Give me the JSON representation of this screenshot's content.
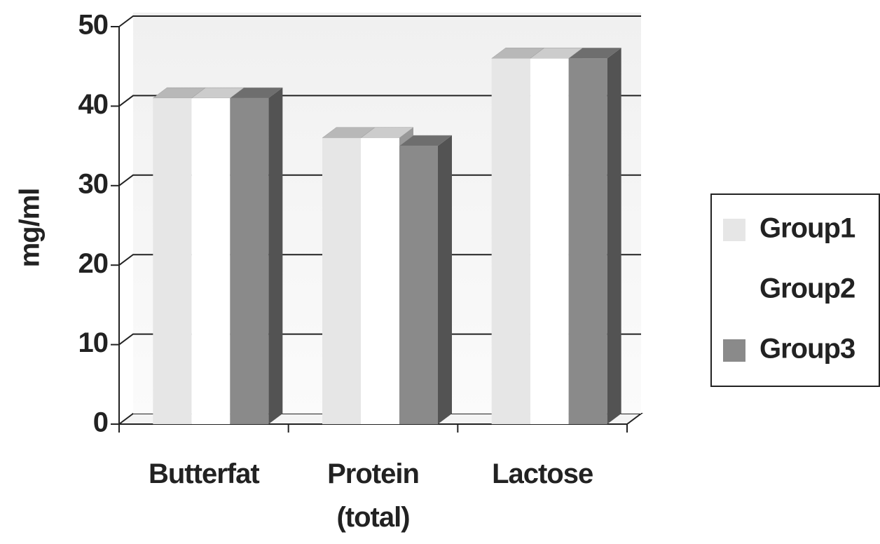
{
  "chart_data": {
    "type": "bar3d",
    "categories": [
      "Butterfat",
      "Protein (total)",
      "Lactose"
    ],
    "series": [
      {
        "name": "Group1",
        "color": "#e6e6e6",
        "values": [
          41,
          36,
          46
        ]
      },
      {
        "name": "Group2",
        "color": "#ffffff",
        "values": [
          41,
          36,
          46
        ]
      },
      {
        "name": "Group3",
        "color": "#8a8a8a",
        "values": [
          41,
          35,
          46
        ]
      }
    ],
    "y_label": "mg/ml",
    "ylim": [
      0,
      50
    ],
    "yticks": [
      0,
      10,
      20,
      30,
      40,
      50
    ],
    "grid": true,
    "legend": "right"
  }
}
